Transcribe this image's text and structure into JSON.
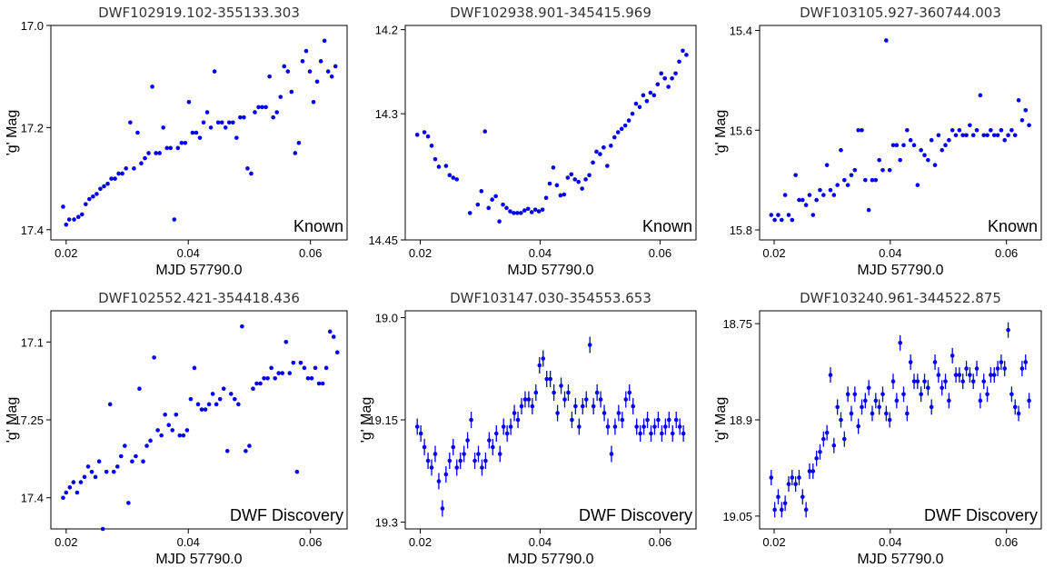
{
  "chart_data": [
    {
      "type": "scatter",
      "title": "DWF102919.102-355133.303",
      "xlabel": "MJD 57790.0",
      "ylabel": "'g' Mag",
      "annotation": "Known",
      "xlim": [
        0.0175,
        0.066
      ],
      "ylim": [
        17.42,
        17.0
      ],
      "xticks": [
        "0.02",
        "0.04",
        "0.06"
      ],
      "yticks": [
        "17.0",
        "17.2",
        "17.4"
      ],
      "error_bars": false,
      "color": "#0000ee",
      "x": [
        0.0195,
        0.02,
        0.0205,
        0.0213,
        0.022,
        0.0226,
        0.0232,
        0.0238,
        0.0244,
        0.025,
        0.0256,
        0.0262,
        0.0268,
        0.0274,
        0.028,
        0.0286,
        0.0292,
        0.0298,
        0.0305,
        0.0311,
        0.0317,
        0.0323,
        0.0329,
        0.0335,
        0.0341,
        0.0347,
        0.0353,
        0.0359,
        0.0365,
        0.0371,
        0.0377,
        0.0383,
        0.0389,
        0.0395,
        0.0401,
        0.0407,
        0.0413,
        0.0419,
        0.0425,
        0.0431,
        0.0437,
        0.0443,
        0.0449,
        0.0455,
        0.0461,
        0.0467,
        0.0473,
        0.0479,
        0.0485,
        0.0491,
        0.0497,
        0.0503,
        0.0509,
        0.0515,
        0.0521,
        0.0527,
        0.0533,
        0.0539,
        0.0545,
        0.0551,
        0.0557,
        0.0563,
        0.0569,
        0.0575,
        0.0581,
        0.0587,
        0.0593,
        0.0599,
        0.0605,
        0.0611,
        0.0617,
        0.0623,
        0.0629,
        0.0635,
        0.0641
      ],
      "y": [
        17.355,
        17.39,
        17.38,
        17.38,
        17.375,
        17.37,
        17.35,
        17.34,
        17.335,
        17.33,
        17.32,
        17.315,
        17.31,
        17.3,
        17.3,
        17.29,
        17.29,
        17.28,
        17.19,
        17.28,
        17.21,
        17.27,
        17.26,
        17.25,
        17.12,
        17.25,
        17.25,
        17.2,
        17.24,
        17.24,
        17.38,
        17.24,
        17.23,
        17.23,
        17.15,
        17.21,
        17.21,
        17.22,
        17.19,
        17.17,
        17.2,
        17.09,
        17.19,
        17.19,
        17.2,
        17.19,
        17.19,
        17.22,
        17.18,
        17.18,
        17.28,
        17.29,
        17.17,
        17.16,
        17.16,
        17.16,
        17.1,
        17.18,
        17.17,
        17.14,
        17.08,
        17.09,
        17.13,
        17.25,
        17.23,
        17.07,
        17.05,
        17.09,
        17.15,
        17.11,
        17.07,
        17.03,
        17.09,
        17.1,
        17.08
      ]
    },
    {
      "type": "scatter",
      "title": "DWF102938.901-345415.969",
      "xlabel": "MJD 57790.0",
      "ylabel": "",
      "annotation": "Known",
      "xlim": [
        0.0175,
        0.066
      ],
      "ylim": [
        14.45,
        14.195
      ],
      "xticks": [
        "0.02",
        "0.04",
        "0.06"
      ],
      "yticks": [
        "14.2",
        "14.3",
        "14.45"
      ],
      "error_bars": false,
      "color": "#0000ee",
      "x": [
        0.0195,
        0.0207,
        0.0213,
        0.0219,
        0.0225,
        0.0231,
        0.0243,
        0.0249,
        0.0255,
        0.0261,
        0.0283,
        0.0296,
        0.0302,
        0.0308,
        0.0314,
        0.032,
        0.0326,
        0.0332,
        0.0338,
        0.0344,
        0.035,
        0.0356,
        0.0362,
        0.0368,
        0.0374,
        0.038,
        0.0386,
        0.0392,
        0.0398,
        0.0404,
        0.041,
        0.0416,
        0.0422,
        0.0428,
        0.0434,
        0.044,
        0.0446,
        0.0452,
        0.0458,
        0.0464,
        0.047,
        0.0476,
        0.0482,
        0.0488,
        0.0494,
        0.05,
        0.0506,
        0.0512,
        0.0518,
        0.0524,
        0.053,
        0.0536,
        0.0542,
        0.0548,
        0.0554,
        0.056,
        0.0566,
        0.0572,
        0.0578,
        0.0584,
        0.059,
        0.0596,
        0.0602,
        0.0608,
        0.0614,
        0.062,
        0.0626,
        0.0632,
        0.0638,
        0.0644
      ],
      "y": [
        14.325,
        14.322,
        14.327,
        14.338,
        14.354,
        14.363,
        14.362,
        14.373,
        14.376,
        14.378,
        14.418,
        14.408,
        14.392,
        14.321,
        14.412,
        14.402,
        14.398,
        14.428,
        14.408,
        14.412,
        14.416,
        14.418,
        14.418,
        14.418,
        14.415,
        14.413,
        14.417,
        14.414,
        14.416,
        14.414,
        14.4,
        14.383,
        14.364,
        14.385,
        14.397,
        14.396,
        14.376,
        14.372,
        14.378,
        14.381,
        14.389,
        14.378,
        14.373,
        14.358,
        14.345,
        14.348,
        14.34,
        14.362,
        14.338,
        14.328,
        14.322,
        14.318,
        14.314,
        14.308,
        14.3,
        14.288,
        14.292,
        14.278,
        14.285,
        14.275,
        14.278,
        14.265,
        14.252,
        14.258,
        14.268,
        14.258,
        14.252,
        14.238,
        14.225,
        14.23
      ]
    },
    {
      "type": "scatter",
      "title": "DWF103105.927-360744.003",
      "xlabel": "MJD 57790.0",
      "ylabel": "'g' Mag",
      "annotation": "Known",
      "xlim": [
        0.0175,
        0.066
      ],
      "ylim": [
        15.82,
        15.39
      ],
      "xticks": [
        "0.02",
        "0.04",
        "0.06"
      ],
      "yticks": [
        "15.4",
        "15.6",
        "15.8"
      ],
      "error_bars": false,
      "color": "#0000ee",
      "x": [
        0.0195,
        0.0201,
        0.0207,
        0.0213,
        0.0219,
        0.0225,
        0.0231,
        0.0237,
        0.0243,
        0.0249,
        0.0255,
        0.0261,
        0.0267,
        0.0273,
        0.0279,
        0.0285,
        0.0291,
        0.0297,
        0.0303,
        0.0309,
        0.0315,
        0.0321,
        0.0327,
        0.0333,
        0.0339,
        0.0345,
        0.0351,
        0.0357,
        0.0363,
        0.0369,
        0.0375,
        0.0381,
        0.0387,
        0.0393,
        0.0399,
        0.0405,
        0.0411,
        0.0417,
        0.0423,
        0.0429,
        0.0435,
        0.0441,
        0.0447,
        0.0453,
        0.0459,
        0.0465,
        0.0471,
        0.0477,
        0.0483,
        0.0489,
        0.0495,
        0.0501,
        0.0507,
        0.0513,
        0.0519,
        0.0525,
        0.0531,
        0.0537,
        0.0543,
        0.0549,
        0.0555,
        0.0561,
        0.0567,
        0.0573,
        0.0579,
        0.0585,
        0.0591,
        0.0597,
        0.0603,
        0.0609,
        0.0615,
        0.0621,
        0.0627,
        0.0633,
        0.0639
      ],
      "y": [
        15.77,
        15.78,
        15.77,
        15.78,
        15.73,
        15.77,
        15.78,
        15.69,
        15.74,
        15.74,
        15.75,
        15.73,
        15.77,
        15.74,
        15.72,
        15.73,
        15.67,
        15.72,
        15.73,
        15.71,
        15.64,
        15.7,
        15.71,
        15.69,
        15.68,
        15.6,
        15.6,
        15.7,
        15.76,
        15.7,
        15.7,
        15.66,
        15.68,
        15.42,
        15.68,
        15.63,
        15.63,
        15.66,
        15.63,
        15.6,
        15.62,
        15.63,
        15.71,
        15.64,
        15.65,
        15.66,
        15.62,
        15.67,
        15.61,
        15.64,
        15.63,
        15.62,
        15.6,
        15.61,
        15.6,
        15.61,
        15.61,
        15.59,
        15.61,
        15.6,
        15.53,
        15.61,
        15.61,
        15.6,
        15.61,
        15.61,
        15.6,
        15.62,
        15.61,
        15.6,
        15.61,
        15.54,
        15.58,
        15.56,
        15.59
      ]
    },
    {
      "type": "scatter",
      "title": "DWF102552.421-354418.436",
      "xlabel": "MJD 57790.0",
      "ylabel": "'g' Mag",
      "annotation": "DWF Discovery",
      "xlim": [
        0.0175,
        0.066
      ],
      "ylim": [
        17.46,
        17.04
      ],
      "xticks": [
        "0.02",
        "0.04",
        "0.06"
      ],
      "yticks": [
        "17.1",
        "17.25",
        "17.4"
      ],
      "error_bars": false,
      "color": "#0000ee",
      "x": [
        0.0195,
        0.02,
        0.0206,
        0.0212,
        0.0218,
        0.0224,
        0.023,
        0.0236,
        0.0242,
        0.0248,
        0.0254,
        0.026,
        0.0266,
        0.0272,
        0.0278,
        0.0284,
        0.029,
        0.0296,
        0.0302,
        0.0308,
        0.0314,
        0.032,
        0.0326,
        0.0332,
        0.0338,
        0.0344,
        0.035,
        0.0356,
        0.0362,
        0.0368,
        0.0374,
        0.038,
        0.0386,
        0.0392,
        0.0398,
        0.0404,
        0.041,
        0.0416,
        0.0422,
        0.0428,
        0.0434,
        0.044,
        0.0446,
        0.0452,
        0.0458,
        0.0464,
        0.047,
        0.0476,
        0.0482,
        0.0488,
        0.0494,
        0.05,
        0.0506,
        0.0512,
        0.0518,
        0.0524,
        0.053,
        0.0536,
        0.0542,
        0.0548,
        0.0554,
        0.056,
        0.0566,
        0.0572,
        0.0578,
        0.0584,
        0.059,
        0.0596,
        0.0602,
        0.0608,
        0.0614,
        0.062,
        0.0626,
        0.0632,
        0.0638,
        0.0644
      ],
      "y": [
        17.4,
        17.39,
        17.38,
        17.37,
        17.39,
        17.37,
        17.36,
        17.34,
        17.35,
        17.36,
        17.33,
        17.46,
        17.35,
        17.22,
        17.35,
        17.34,
        17.32,
        17.3,
        17.41,
        17.33,
        17.32,
        17.19,
        17.33,
        17.3,
        17.29,
        17.13,
        17.27,
        17.28,
        17.24,
        17.26,
        17.27,
        17.24,
        17.28,
        17.28,
        17.27,
        17.21,
        17.15,
        17.22,
        17.23,
        17.23,
        17.22,
        17.2,
        17.22,
        17.21,
        17.19,
        17.31,
        17.2,
        17.21,
        17.22,
        17.07,
        17.31,
        17.3,
        17.19,
        17.18,
        17.18,
        17.17,
        17.17,
        17.15,
        17.17,
        17.16,
        17.16,
        17.1,
        17.16,
        17.14,
        17.35,
        17.14,
        17.15,
        17.17,
        17.17,
        17.15,
        17.18,
        17.18,
        17.15,
        17.08,
        17.09,
        17.12
      ]
    },
    {
      "type": "scatter",
      "title": "DWF103147.030-354553.653",
      "xlabel": "MJD 57790.0",
      "ylabel": "'g' Mag",
      "annotation": "DWF Discovery",
      "xlim": [
        0.0175,
        0.066
      ],
      "ylim": [
        19.31,
        18.99
      ],
      "xticks": [
        "0.02",
        "0.04",
        "0.06"
      ],
      "yticks": [
        "19.0",
        "19.15",
        "19.3"
      ],
      "error_bars": true,
      "error": 0.012,
      "color": "#0000ee",
      "x": [
        0.0195,
        0.0201,
        0.0207,
        0.0213,
        0.0219,
        0.0225,
        0.0231,
        0.0237,
        0.0243,
        0.0249,
        0.0255,
        0.0261,
        0.0267,
        0.0273,
        0.0279,
        0.0285,
        0.0291,
        0.0297,
        0.0303,
        0.0309,
        0.0315,
        0.0321,
        0.0327,
        0.0333,
        0.0339,
        0.0345,
        0.0351,
        0.0357,
        0.0363,
        0.0369,
        0.0375,
        0.0381,
        0.0387,
        0.0393,
        0.0399,
        0.0405,
        0.0411,
        0.0417,
        0.0423,
        0.0429,
        0.0435,
        0.0441,
        0.0447,
        0.0453,
        0.0459,
        0.0465,
        0.0471,
        0.0477,
        0.0483,
        0.0489,
        0.0495,
        0.0501,
        0.0507,
        0.0513,
        0.0519,
        0.0525,
        0.0531,
        0.0537,
        0.0543,
        0.0549,
        0.0555,
        0.0561,
        0.0567,
        0.0573,
        0.0579,
        0.0585,
        0.0591,
        0.0597,
        0.0603,
        0.0609,
        0.0615,
        0.0621,
        0.0627,
        0.0633,
        0.0639
      ],
      "y": [
        19.16,
        19.17,
        19.19,
        19.21,
        19.22,
        19.2,
        19.24,
        19.28,
        19.23,
        19.21,
        19.19,
        19.22,
        19.21,
        19.2,
        19.18,
        19.15,
        19.21,
        19.2,
        19.22,
        19.21,
        19.18,
        19.19,
        19.17,
        19.2,
        19.16,
        19.17,
        19.16,
        19.14,
        19.15,
        19.13,
        19.12,
        19.12,
        19.13,
        19.11,
        19.07,
        19.06,
        19.09,
        19.09,
        19.11,
        19.14,
        19.1,
        19.12,
        19.11,
        19.15,
        19.13,
        19.16,
        19.13,
        19.12,
        19.04,
        19.13,
        19.11,
        19.12,
        19.14,
        19.16,
        19.2,
        19.16,
        19.14,
        19.15,
        19.12,
        19.11,
        19.13,
        19.16,
        19.17,
        19.16,
        19.15,
        19.17,
        19.16,
        19.15,
        19.17,
        19.16,
        19.15,
        19.17,
        19.15,
        19.16,
        19.17
      ]
    },
    {
      "type": "scatter",
      "title": "DWF103240.961-344522.875",
      "xlabel": "MJD 57790.0",
      "ylabel": "'g' Mag",
      "annotation": "DWF Discovery",
      "xlim": [
        0.0175,
        0.066
      ],
      "ylim": [
        19.07,
        18.73
      ],
      "xticks": [
        "0.02",
        "0.04",
        "0.06"
      ],
      "yticks": [
        "18.75",
        "18.9",
        "19.05"
      ],
      "error_bars": true,
      "error": 0.012,
      "color": "#0000ee",
      "x": [
        0.0195,
        0.0201,
        0.0207,
        0.0213,
        0.0219,
        0.0225,
        0.0231,
        0.0237,
        0.0243,
        0.0249,
        0.0255,
        0.0261,
        0.0267,
        0.0273,
        0.0279,
        0.0285,
        0.0291,
        0.0297,
        0.0303,
        0.0309,
        0.0315,
        0.0321,
        0.0327,
        0.0333,
        0.0339,
        0.0345,
        0.0351,
        0.0357,
        0.0363,
        0.0369,
        0.0375,
        0.0381,
        0.0387,
        0.0393,
        0.0399,
        0.0405,
        0.0411,
        0.0417,
        0.0423,
        0.0429,
        0.0435,
        0.0441,
        0.0447,
        0.0453,
        0.0459,
        0.0465,
        0.0471,
        0.0477,
        0.0483,
        0.0489,
        0.0495,
        0.0501,
        0.0507,
        0.0513,
        0.0519,
        0.0525,
        0.0531,
        0.0537,
        0.0543,
        0.0549,
        0.0555,
        0.0561,
        0.0567,
        0.0573,
        0.0579,
        0.0585,
        0.0591,
        0.0597,
        0.0603,
        0.0609,
        0.0615,
        0.0621,
        0.0627,
        0.0633,
        0.0639
      ],
      "y": [
        18.99,
        19.04,
        19.02,
        19.04,
        19.03,
        19.0,
        18.99,
        19.0,
        18.99,
        19.02,
        19.04,
        18.98,
        18.98,
        18.96,
        18.95,
        18.93,
        18.92,
        18.83,
        18.94,
        18.88,
        18.9,
        18.93,
        18.86,
        18.89,
        18.86,
        18.91,
        18.88,
        18.87,
        18.85,
        18.89,
        18.87,
        18.88,
        18.86,
        18.89,
        18.9,
        18.84,
        18.87,
        18.78,
        18.86,
        18.89,
        18.81,
        18.84,
        18.84,
        18.86,
        18.84,
        18.85,
        18.88,
        18.81,
        18.83,
        18.85,
        18.84,
        18.87,
        18.8,
        18.83,
        18.83,
        18.84,
        18.82,
        18.83,
        18.84,
        18.82,
        18.87,
        18.84,
        18.86,
        18.83,
        18.83,
        18.82,
        18.81,
        18.82,
        18.76,
        18.86,
        18.88,
        18.89,
        18.82,
        18.81,
        18.87
      ]
    }
  ]
}
